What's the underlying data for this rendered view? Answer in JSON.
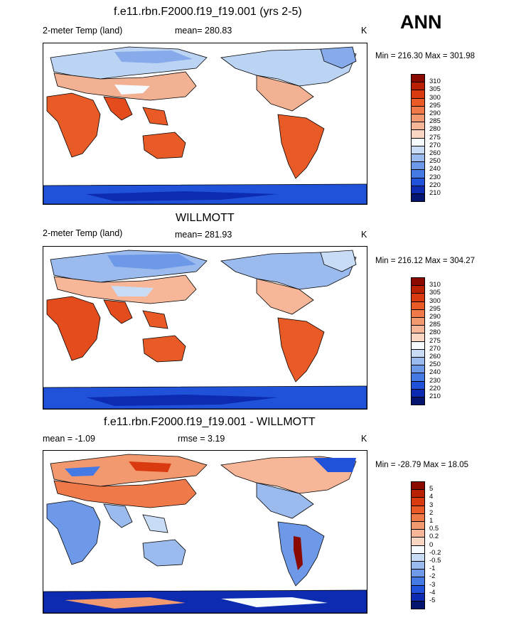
{
  "season": "ANN",
  "panels": [
    {
      "title": "f.e11.rbn.F2000.f19_f19.001 (yrs 2-5)",
      "left_label": "2-meter Temp (land)",
      "stat": "mean= 280.83",
      "stat2": "",
      "unit": "K",
      "minmax": "Min = 216.30 Max = 301.98",
      "kind": "abs",
      "levels": [
        "310",
        "305",
        "300",
        "295",
        "290",
        "285",
        "280",
        "275",
        "270",
        "260",
        "250",
        "240",
        "230",
        "220",
        "210"
      ]
    },
    {
      "title": "WILLMOTT",
      "left_label": "2-meter Temp (land)",
      "stat": "mean= 281.93",
      "stat2": "",
      "unit": "K",
      "minmax": "Min = 216.12 Max = 304.27",
      "kind": "abs",
      "levels": [
        "310",
        "305",
        "300",
        "295",
        "290",
        "285",
        "280",
        "275",
        "270",
        "260",
        "250",
        "240",
        "230",
        "220",
        "210"
      ]
    },
    {
      "title": "f.e11.rbn.F2000.f19_f19.001 - WILLMOTT",
      "left_label": "mean =  -1.09",
      "stat": "rmse =   3.19",
      "stat2": "",
      "unit": "K",
      "minmax": "Min = -28.79 Max =  18.05",
      "kind": "diff",
      "levels": [
        "5",
        "4",
        "3",
        "2",
        "1",
        "0.5",
        "0.2",
        "0",
        "-0.2",
        "-0.5",
        "-1",
        "-2",
        "-3",
        "-4",
        "-5"
      ]
    }
  ],
  "colors": {
    "abs": [
      "#8b0a00",
      "#b82000",
      "#d93a10",
      "#ea5a26",
      "#f0794a",
      "#f3996f",
      "#f6b697",
      "#f8d6c2",
      "#f6fbff",
      "#c9dcf5",
      "#9bbbee",
      "#6e99e8",
      "#4579e4",
      "#1f52d8",
      "#0c2bb0",
      "#041570"
    ],
    "diff": [
      "#8b0a00",
      "#b82000",
      "#d93a10",
      "#ea5a26",
      "#f0794a",
      "#f3996f",
      "#f6b697",
      "#f8d6c2",
      "#f6fbff",
      "#c9dcf5",
      "#9bbbee",
      "#6e99e8",
      "#4579e4",
      "#1f52d8",
      "#0c2bb0",
      "#041570"
    ]
  }
}
